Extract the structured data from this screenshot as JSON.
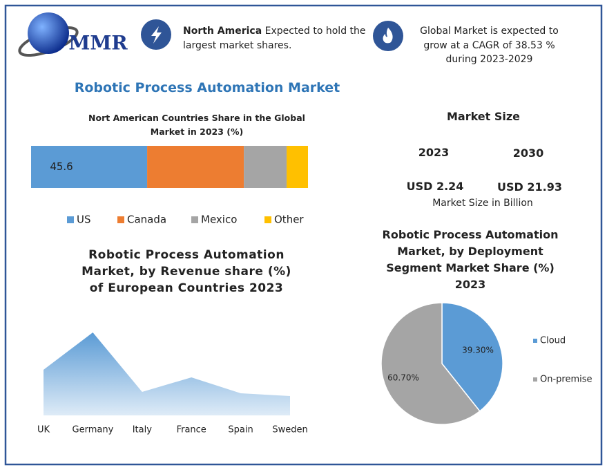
{
  "header": {
    "logo": "MMR",
    "highlight_1_bold": "North America",
    "highlight_1_text": "Expected to hold the largest market shares.",
    "highlight_2_text": "Global Market is expected to grow at a CAGR of 38.53 % during 2023-2029"
  },
  "title": "Robotic Process Automation Market",
  "market_size": {
    "title": "Market Size",
    "years": [
      "2023",
      "2030"
    ],
    "values": [
      "USD 2.24",
      "USD 21.93"
    ],
    "note": "Market Size in Billion"
  },
  "chart_data": [
    {
      "type": "bar",
      "orientation": "horizontal",
      "stacked": true,
      "title": "Nort American Countries Share in the Global Market in 2023 (%)",
      "series": [
        {
          "name": "US",
          "color": "#5b9bd5",
          "values": [
            45.6
          ],
          "label": true
        },
        {
          "name": "Canada",
          "color": "#ed7d31",
          "values": [
            38
          ]
        },
        {
          "name": "Mexico",
          "color": "#a5a5a5",
          "values": [
            16.8
          ]
        },
        {
          "name": "Other",
          "color": "#ffc000",
          "values": [
            8.4
          ]
        }
      ]
    },
    {
      "type": "area",
      "title": "Robotic Process Automation Market, by Revenue share (%) of European Countries 2023",
      "categories": [
        "UK",
        "Germany",
        "Italy",
        "France",
        "Spain",
        "Sweden"
      ],
      "values": [
        66,
        120,
        34,
        55,
        32,
        28
      ],
      "color": "#5b9bd5"
    },
    {
      "type": "pie",
      "title": "Robotic Process Automation Market, by Deployment Segment Market Share (%) 2023",
      "categories": [
        "Cloud",
        "On-premise"
      ],
      "values": [
        39.3,
        60.7
      ],
      "value_labels": [
        "39.30%",
        "60.70%"
      ],
      "colors": [
        "#5b9bd5",
        "#a5a5a5"
      ]
    }
  ]
}
